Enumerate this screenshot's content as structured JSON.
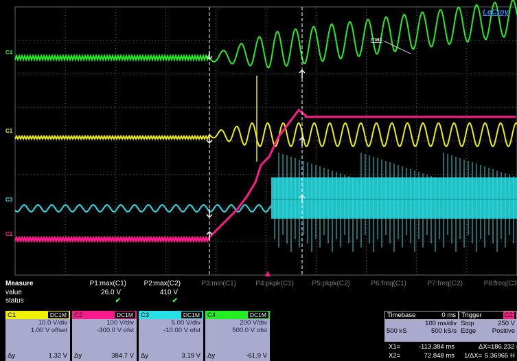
{
  "brand": "LeCroy",
  "colors": {
    "c1": "#f0f000",
    "c2": "#ff1a8c",
    "c3": "#29e0e6",
    "c4": "#22ee22",
    "panel": "#aaaacf"
  },
  "channel_markers": [
    {
      "label": "C4",
      "color": "#22ee22"
    },
    {
      "label": "C1",
      "color": "#f0f000"
    },
    {
      "label": "C3",
      "color": "#29e0e6"
    },
    {
      "label": "C2",
      "color": "#ff1a8c"
    }
  ],
  "marker_text": "max",
  "measure": {
    "title": "Measure",
    "row_labels": [
      "value",
      "status"
    ],
    "params": [
      {
        "name": "P1:max(C1)",
        "value": "26.0 V",
        "status": "✔",
        "active": true
      },
      {
        "name": "P2:max(C2)",
        "value": "410 V",
        "status": "✔",
        "active": true
      },
      {
        "name": "P3:min(C1)",
        "value": "",
        "status": "",
        "active": false
      },
      {
        "name": "P4:pkpk(C1)",
        "value": "",
        "status": "",
        "active": false
      },
      {
        "name": "P5:pkpk(C2)",
        "value": "",
        "status": "",
        "active": false
      },
      {
        "name": "P6:freq(C1)",
        "value": "",
        "status": "",
        "active": false
      },
      {
        "name": "P7:freq(C2)",
        "value": "",
        "status": "",
        "active": false
      },
      {
        "name": "P8:freq(C3",
        "value": "",
        "status": "",
        "active": false
      }
    ]
  },
  "channels": [
    {
      "name": "C1",
      "coupling": "DC1M",
      "vdiv": "10.0 V/div",
      "offset": "1.00 V offset",
      "dy_label": "Δy",
      "dy": "1.32 V",
      "color": "#f0f000"
    },
    {
      "name": "C2",
      "coupling": "DC1M",
      "vdiv": "100 V/div",
      "offset": "-300.0 V ofst",
      "dy_label": "Δy",
      "dy": "384.7 V",
      "color": "#ff1a8c"
    },
    {
      "name": "C3",
      "coupling": "DC1M",
      "vdiv": "5.00 V/div",
      "offset": "-10.00 V ofst",
      "dy_label": "Δy",
      "dy": "3.19 V",
      "color": "#29e0e6"
    },
    {
      "name": "C4",
      "coupling": "DC1M",
      "vdiv": "200 V/div",
      "offset": "500.0 V ofst",
      "dy_label": "Δy",
      "dy": "-61.9 V",
      "color": "#22ee22"
    }
  ],
  "timebase": {
    "title": "Timebase",
    "delay": "0 ms",
    "tdiv": "100 ms/div",
    "samples": "500 kS",
    "rate": "500 kS/s"
  },
  "trigger": {
    "title": "Trigger",
    "source": "C2",
    "mode": "Stop",
    "level": "250 V",
    "type": "Edge",
    "slope": "Positive"
  },
  "cursors": {
    "x1_label": "X1=",
    "x1": "-113.384 ms",
    "dx_label": "ΔX=",
    "dx": "186.232 m",
    "x2_label": "X2=",
    "x2": "72.848 ms",
    "inv_label": "1/ΔX=",
    "inv": "5.36965 H"
  }
}
